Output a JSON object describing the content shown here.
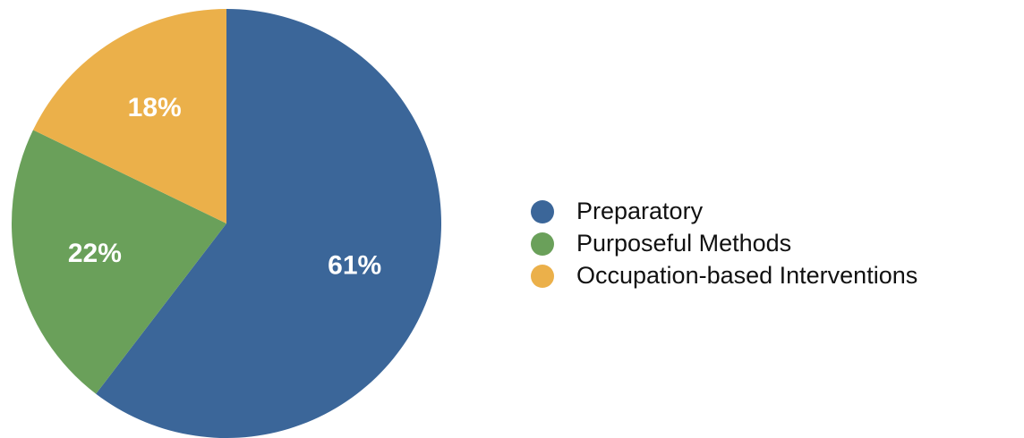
{
  "chart_data": {
    "type": "pie",
    "categories": [
      "Preparatory",
      "Purposeful Methods",
      "Occupation-based Interventions"
    ],
    "values": [
      61,
      22,
      18
    ],
    "value_labels": [
      "61%",
      "22%",
      "18%"
    ],
    "colors": [
      "#3b6699",
      "#6aa05a",
      "#ebb04a"
    ],
    "legend": "right"
  }
}
